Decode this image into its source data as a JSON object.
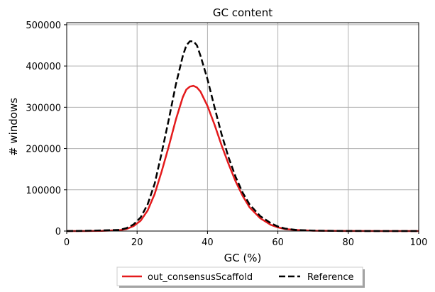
{
  "chart_data": {
    "type": "line",
    "title": "GC content",
    "xlabel": "GC (%)",
    "ylabel": "# windows",
    "xlim": [
      0,
      100
    ],
    "ylim": [
      0,
      505000
    ],
    "xticks": [
      0,
      20,
      40,
      60,
      80,
      100
    ],
    "yticks": [
      0,
      100000,
      200000,
      300000,
      400000,
      500000
    ],
    "grid": true,
    "legend_position": "bottom-center",
    "series": [
      {
        "name": "out_consensusScaffold",
        "color": "#e41a1c",
        "style": "solid",
        "x": [
          0,
          5,
          10,
          15,
          17,
          19,
          21,
          23,
          25,
          27,
          29,
          31,
          33,
          34,
          35,
          36,
          37,
          38,
          40,
          42,
          44,
          46,
          48,
          50,
          52,
          55,
          58,
          60,
          62,
          65,
          70,
          80,
          90,
          100
        ],
        "y": [
          0,
          0,
          500,
          2000,
          5000,
          12000,
          25000,
          50000,
          90000,
          145000,
          205000,
          270000,
          325000,
          343000,
          350000,
          352000,
          348000,
          338000,
          303000,
          258000,
          208000,
          162000,
          120000,
          85000,
          57000,
          31000,
          15000,
          9000,
          5000,
          2500,
          800,
          100,
          0,
          0
        ]
      },
      {
        "name": "Reference",
        "color": "#000000",
        "style": "dashed",
        "x": [
          0,
          5,
          10,
          15,
          17,
          19,
          21,
          23,
          25,
          27,
          29,
          31,
          33,
          34,
          35,
          36,
          37,
          38,
          40,
          42,
          44,
          46,
          48,
          50,
          52,
          55,
          58,
          60,
          62,
          65,
          70,
          80,
          90,
          100
        ],
        "y": [
          0,
          500,
          1500,
          3000,
          7000,
          16000,
          33000,
          65000,
          115000,
          190000,
          270000,
          355000,
          425000,
          450000,
          460000,
          460000,
          450000,
          425000,
          368000,
          300000,
          235000,
          178000,
          131000,
          93000,
          64000,
          36000,
          19000,
          11000,
          6000,
          3000,
          1000,
          200,
          0,
          0
        ]
      }
    ]
  }
}
